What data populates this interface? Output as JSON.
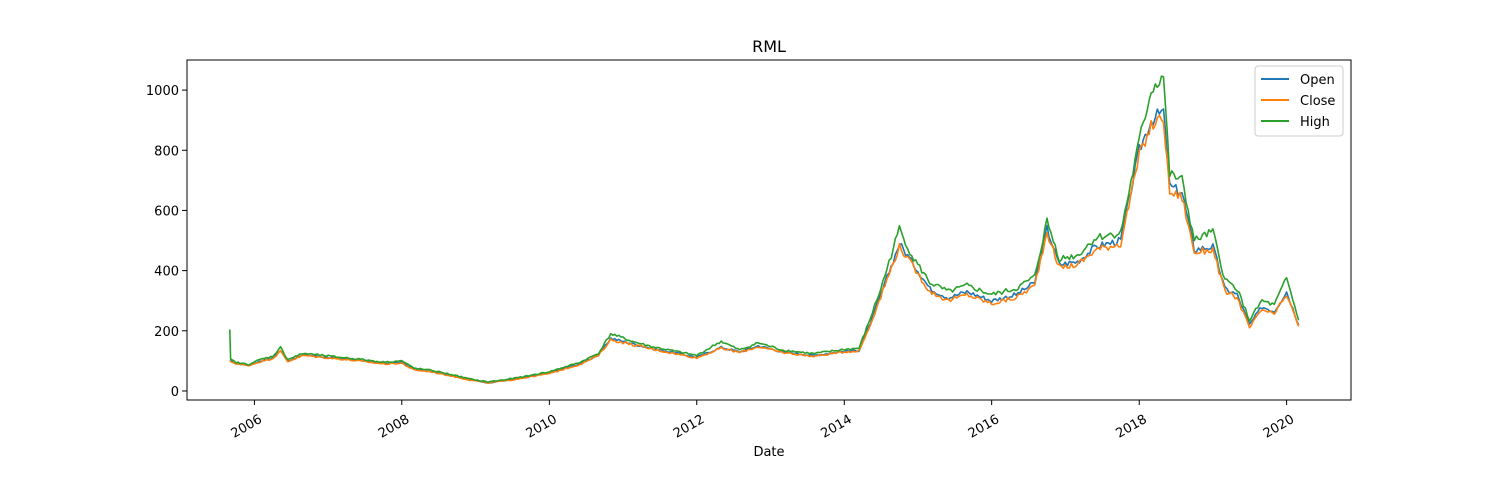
{
  "chart_data": {
    "type": "line",
    "title": "RML",
    "xlabel": "Date",
    "ylabel": "",
    "xlim": [
      "2005-02-01",
      "2020-11-15"
    ],
    "ylim": [
      -30,
      1100
    ],
    "grid": false,
    "legend_position": "top-right",
    "x_ticks": [
      "2006",
      "2008",
      "2010",
      "2012",
      "2014",
      "2016",
      "2018",
      "2020"
    ],
    "y_ticks": [
      0,
      200,
      400,
      600,
      800,
      1000
    ],
    "series": [
      {
        "name": "Open",
        "color": "#1f77b4",
        "points": [
          [
            "2005-09-01",
            100
          ],
          [
            "2005-10-01",
            92
          ],
          [
            "2005-12-01",
            85
          ],
          [
            "2006-02-01",
            100
          ],
          [
            "2006-04-01",
            110
          ],
          [
            "2006-05-10",
            135
          ],
          [
            "2006-06-15",
            100
          ],
          [
            "2006-09-01",
            120
          ],
          [
            "2007-01-01",
            112
          ],
          [
            "2007-06-01",
            102
          ],
          [
            "2007-10-01",
            92
          ],
          [
            "2008-01-01",
            95
          ],
          [
            "2008-03-01",
            72
          ],
          [
            "2008-06-01",
            65
          ],
          [
            "2008-09-01",
            52
          ],
          [
            "2008-12-01",
            38
          ],
          [
            "2009-03-01",
            28
          ],
          [
            "2009-06-01",
            35
          ],
          [
            "2009-09-01",
            45
          ],
          [
            "2010-01-01",
            60
          ],
          [
            "2010-06-01",
            90
          ],
          [
            "2010-09-01",
            120
          ],
          [
            "2010-11-01",
            175
          ],
          [
            "2011-03-01",
            155
          ],
          [
            "2011-06-01",
            140
          ],
          [
            "2011-10-01",
            125
          ],
          [
            "2012-01-01",
            112
          ],
          [
            "2012-05-01",
            145
          ],
          [
            "2012-08-01",
            130
          ],
          [
            "2012-11-01",
            150
          ],
          [
            "2013-03-01",
            130
          ],
          [
            "2013-08-01",
            118
          ],
          [
            "2014-01-01",
            132
          ],
          [
            "2014-03-15",
            135
          ],
          [
            "2014-05-01",
            210
          ],
          [
            "2014-07-01",
            320
          ],
          [
            "2014-10-01",
            490
          ],
          [
            "2014-12-01",
            430
          ],
          [
            "2015-03-01",
            340
          ],
          [
            "2015-06-01",
            310
          ],
          [
            "2015-09-01",
            330
          ],
          [
            "2016-01-01",
            300
          ],
          [
            "2016-05-01",
            320
          ],
          [
            "2016-08-01",
            360
          ],
          [
            "2016-10-01",
            540
          ],
          [
            "2016-12-01",
            420
          ],
          [
            "2017-03-01",
            430
          ],
          [
            "2017-06-01",
            480
          ],
          [
            "2017-10-01",
            500
          ],
          [
            "2018-01-01",
            800
          ],
          [
            "2018-03-01",
            900
          ],
          [
            "2018-05-01",
            930
          ],
          [
            "2018-06-01",
            680
          ],
          [
            "2018-08-01",
            660
          ],
          [
            "2018-10-01",
            470
          ],
          [
            "2019-01-01",
            480
          ],
          [
            "2019-03-01",
            340
          ],
          [
            "2019-05-01",
            320
          ],
          [
            "2019-07-01",
            220
          ],
          [
            "2019-09-01",
            280
          ],
          [
            "2019-11-01",
            265
          ],
          [
            "2020-01-01",
            330
          ],
          [
            "2020-03-01",
            220
          ]
        ]
      },
      {
        "name": "Close",
        "color": "#ff7f0e",
        "points": [
          [
            "2005-09-01",
            99
          ],
          [
            "2005-10-01",
            91
          ],
          [
            "2005-12-01",
            84
          ],
          [
            "2006-02-01",
            98
          ],
          [
            "2006-04-01",
            108
          ],
          [
            "2006-05-10",
            132
          ],
          [
            "2006-06-15",
            98
          ],
          [
            "2006-09-01",
            118
          ],
          [
            "2007-01-01",
            110
          ],
          [
            "2007-06-01",
            100
          ],
          [
            "2007-10-01",
            90
          ],
          [
            "2008-01-01",
            92
          ],
          [
            "2008-03-01",
            70
          ],
          [
            "2008-06-01",
            63
          ],
          [
            "2008-09-01",
            50
          ],
          [
            "2008-12-01",
            37
          ],
          [
            "2009-03-01",
            27
          ],
          [
            "2009-06-01",
            34
          ],
          [
            "2009-09-01",
            44
          ],
          [
            "2010-01-01",
            58
          ],
          [
            "2010-06-01",
            88
          ],
          [
            "2010-09-01",
            118
          ],
          [
            "2010-11-01",
            170
          ],
          [
            "2011-03-01",
            152
          ],
          [
            "2011-06-01",
            138
          ],
          [
            "2011-10-01",
            122
          ],
          [
            "2012-01-01",
            110
          ],
          [
            "2012-05-01",
            142
          ],
          [
            "2012-08-01",
            128
          ],
          [
            "2012-11-01",
            147
          ],
          [
            "2013-03-01",
            128
          ],
          [
            "2013-08-01",
            115
          ],
          [
            "2014-01-01",
            130
          ],
          [
            "2014-03-15",
            133
          ],
          [
            "2014-05-01",
            205
          ],
          [
            "2014-07-01",
            315
          ],
          [
            "2014-10-01",
            480
          ],
          [
            "2014-12-01",
            420
          ],
          [
            "2015-03-01",
            330
          ],
          [
            "2015-06-01",
            300
          ],
          [
            "2015-09-01",
            320
          ],
          [
            "2016-01-01",
            290
          ],
          [
            "2016-05-01",
            310
          ],
          [
            "2016-08-01",
            350
          ],
          [
            "2016-10-01",
            530
          ],
          [
            "2016-12-01",
            410
          ],
          [
            "2017-03-01",
            420
          ],
          [
            "2017-06-01",
            470
          ],
          [
            "2017-10-01",
            490
          ],
          [
            "2018-01-01",
            780
          ],
          [
            "2018-03-01",
            880
          ],
          [
            "2018-05-01",
            910
          ],
          [
            "2018-06-01",
            660
          ],
          [
            "2018-08-01",
            645
          ],
          [
            "2018-10-01",
            460
          ],
          [
            "2019-01-01",
            470
          ],
          [
            "2019-03-01",
            330
          ],
          [
            "2019-05-01",
            310
          ],
          [
            "2019-07-01",
            210
          ],
          [
            "2019-09-01",
            270
          ],
          [
            "2019-11-01",
            255
          ],
          [
            "2020-01-01",
            320
          ],
          [
            "2020-03-01",
            215
          ]
        ]
      },
      {
        "name": "High",
        "color": "#2ca02c",
        "points": [
          [
            "2005-09-01",
            200
          ],
          [
            "2005-09-05",
            105
          ],
          [
            "2005-10-01",
            95
          ],
          [
            "2005-12-01",
            88
          ],
          [
            "2006-02-01",
            105
          ],
          [
            "2006-04-01",
            115
          ],
          [
            "2006-05-10",
            145
          ],
          [
            "2006-06-15",
            105
          ],
          [
            "2006-09-01",
            125
          ],
          [
            "2007-01-01",
            116
          ],
          [
            "2007-06-01",
            106
          ],
          [
            "2007-10-01",
            96
          ],
          [
            "2008-01-01",
            100
          ],
          [
            "2008-03-01",
            76
          ],
          [
            "2008-06-01",
            68
          ],
          [
            "2008-09-01",
            55
          ],
          [
            "2008-12-01",
            40
          ],
          [
            "2009-03-01",
            30
          ],
          [
            "2009-06-01",
            38
          ],
          [
            "2009-09-01",
            48
          ],
          [
            "2010-01-01",
            64
          ],
          [
            "2010-06-01",
            95
          ],
          [
            "2010-09-01",
            125
          ],
          [
            "2010-11-01",
            190
          ],
          [
            "2011-03-01",
            162
          ],
          [
            "2011-06-01",
            146
          ],
          [
            "2011-10-01",
            130
          ],
          [
            "2012-01-01",
            118
          ],
          [
            "2012-05-01",
            165
          ],
          [
            "2012-08-01",
            136
          ],
          [
            "2012-11-01",
            160
          ],
          [
            "2013-03-01",
            136
          ],
          [
            "2013-08-01",
            124
          ],
          [
            "2014-01-01",
            138
          ],
          [
            "2014-03-15",
            142
          ],
          [
            "2014-05-01",
            225
          ],
          [
            "2014-07-01",
            340
          ],
          [
            "2014-10-01",
            540
          ],
          [
            "2014-12-01",
            450
          ],
          [
            "2015-03-01",
            360
          ],
          [
            "2015-06-01",
            330
          ],
          [
            "2015-09-01",
            350
          ],
          [
            "2016-01-01",
            320
          ],
          [
            "2016-05-01",
            340
          ],
          [
            "2016-08-01",
            380
          ],
          [
            "2016-10-01",
            565
          ],
          [
            "2016-12-01",
            440
          ],
          [
            "2017-03-01",
            450
          ],
          [
            "2017-06-01",
            510
          ],
          [
            "2017-10-01",
            525
          ],
          [
            "2018-01-01",
            830
          ],
          [
            "2018-03-01",
            1000
          ],
          [
            "2018-05-01",
            1050
          ],
          [
            "2018-06-01",
            720
          ],
          [
            "2018-08-01",
            700
          ],
          [
            "2018-10-01",
            500
          ],
          [
            "2019-01-01",
            530
          ],
          [
            "2019-03-01",
            370
          ],
          [
            "2019-05-01",
            340
          ],
          [
            "2019-07-01",
            235
          ],
          [
            "2019-09-01",
            300
          ],
          [
            "2019-11-01",
            285
          ],
          [
            "2020-01-01",
            375
          ],
          [
            "2020-03-01",
            235
          ]
        ]
      }
    ]
  }
}
